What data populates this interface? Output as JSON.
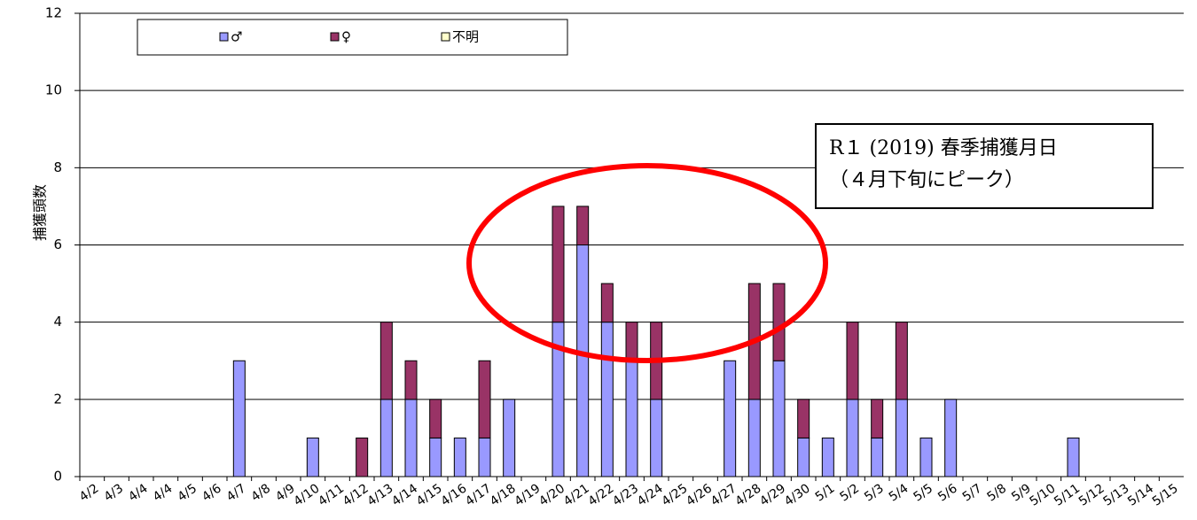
{
  "chart_data": {
    "type": "stacked_bar",
    "y_label": "捕獲頭数",
    "annotations": [
      "R１ (2019) 春季捕獲月日",
      "（４月下旬にピーク）"
    ],
    "categories": [
      "4/2",
      "4/3",
      "4/4",
      "4/4",
      "4/5",
      "4/6",
      "4/7",
      "4/8",
      "4/9",
      "4/10",
      "4/11",
      "4/12",
      "4/13",
      "4/14",
      "4/15",
      "4/16",
      "4/17",
      "4/18",
      "4/19",
      "4/20",
      "4/21",
      "4/22",
      "4/23",
      "4/24",
      "4/25",
      "4/26",
      "4/27",
      "4/28",
      "4/29",
      "4/30",
      "5/1",
      "5/2",
      "5/3",
      "5/4",
      "5/5",
      "5/6",
      "5/7",
      "5/8",
      "5/9",
      "5/10",
      "5/11",
      "5/12",
      "5/13",
      "5/14",
      "5/15"
    ],
    "series": [
      {
        "name": "♂",
        "color": "#9999ff",
        "values": [
          0,
          0,
          0,
          0,
          0,
          0,
          3,
          0,
          0,
          1,
          0,
          0,
          2,
          2,
          1,
          1,
          1,
          2,
          0,
          4,
          6,
          4,
          3,
          2,
          0,
          0,
          3,
          2,
          3,
          1,
          1,
          2,
          1,
          2,
          1,
          2,
          0,
          0,
          0,
          0,
          1,
          0,
          0,
          0,
          0
        ]
      },
      {
        "name": "♀",
        "color": "#993366",
        "values": [
          0,
          0,
          0,
          0,
          0,
          0,
          0,
          0,
          0,
          0,
          0,
          1,
          2,
          1,
          1,
          0,
          2,
          0,
          0,
          3,
          1,
          1,
          1,
          2,
          0,
          0,
          0,
          3,
          2,
          1,
          0,
          2,
          1,
          2,
          0,
          0,
          0,
          0,
          0,
          0,
          0,
          0,
          0,
          0,
          0
        ]
      },
      {
        "name": "不明",
        "color": "#ffffcc",
        "values": [
          0,
          0,
          0,
          0,
          0,
          0,
          0,
          0,
          0,
          0,
          0,
          0,
          0,
          0,
          0,
          0,
          0,
          0,
          0,
          0,
          0,
          0,
          0,
          0,
          0,
          0,
          0,
          0,
          0,
          0,
          0,
          0,
          0,
          0,
          0,
          0,
          0,
          0,
          0,
          0,
          0,
          0,
          0,
          0,
          0
        ]
      }
    ],
    "ylim": [
      0,
      12
    ],
    "yticks": [
      0,
      2,
      4,
      6,
      8,
      10,
      12
    ],
    "grid": true,
    "legend": "top"
  }
}
